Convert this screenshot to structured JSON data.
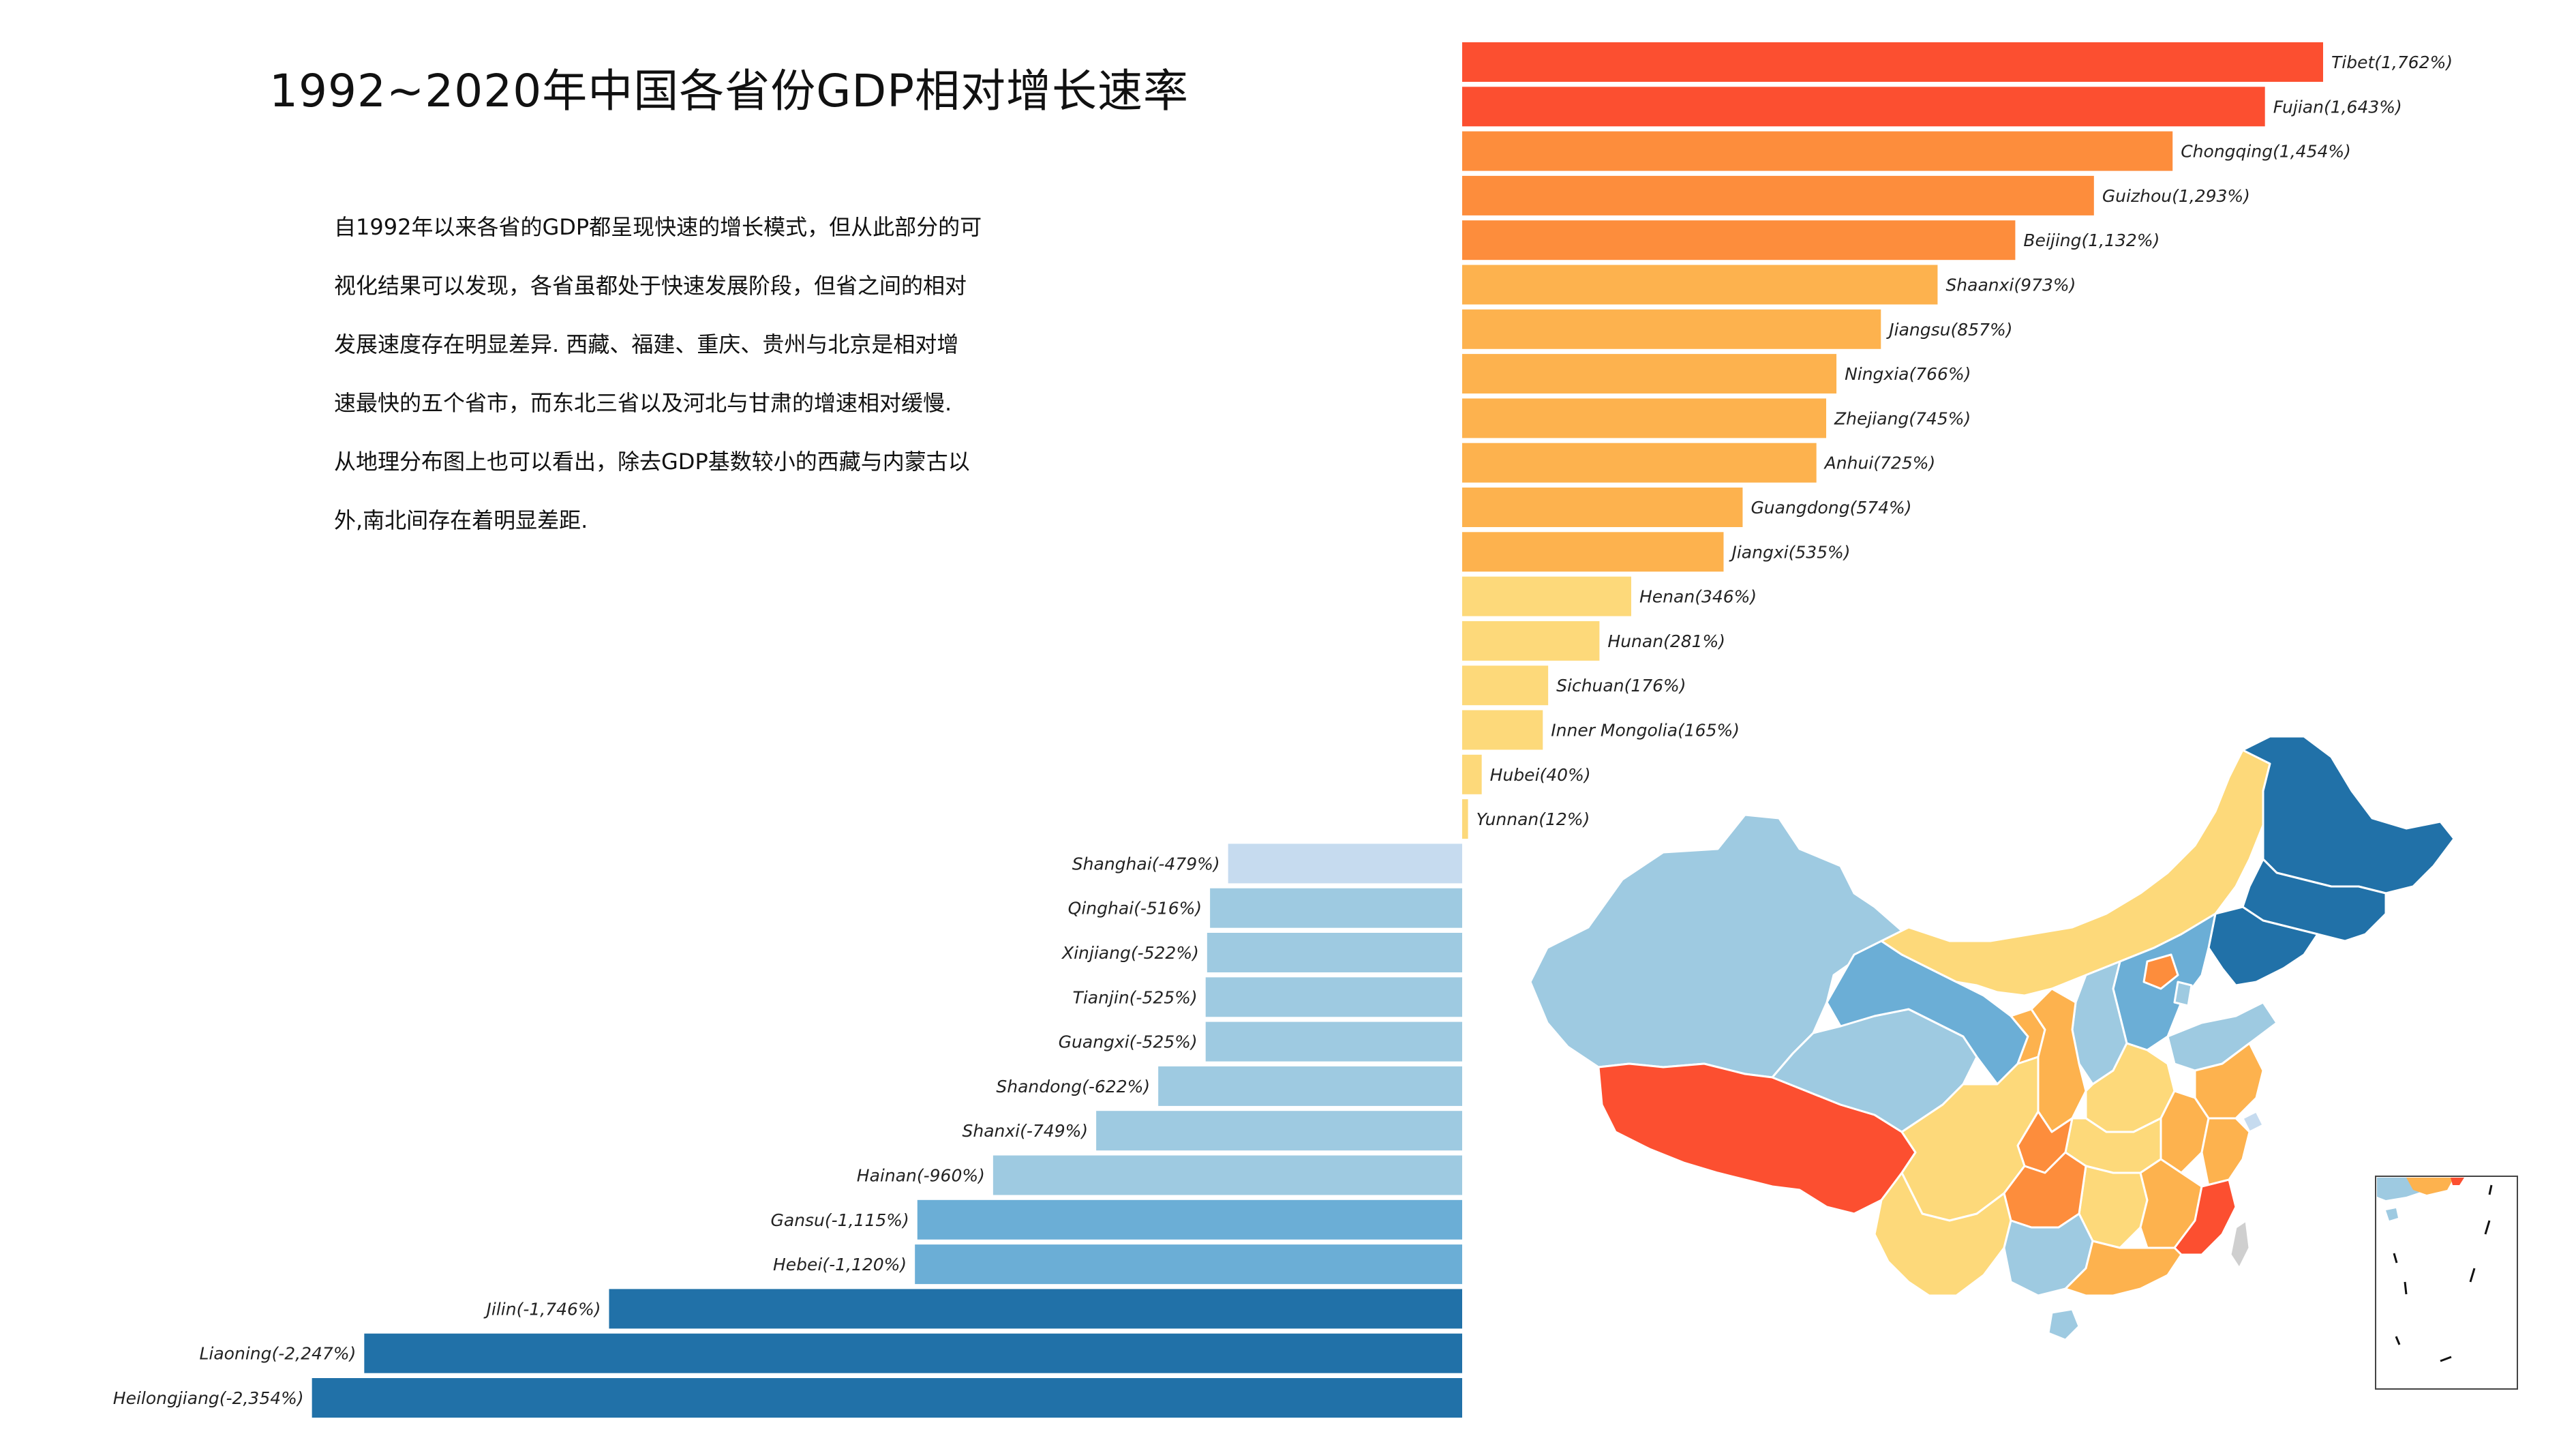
{
  "title": "1992~2020年中国各省份GDP相对增长速率",
  "description_lines": [
    "自1992年以来各省的GDP都呈现快速的增长模式，但从此部分的可",
    "视化结果可以发现，各省虽都处于快速发展阶段，但省之间的相对",
    "发展速度存在明显差异. 西藏、福建、重庆、贵州与北京是相对增",
    "速最快的五个省市，而东北三省以及河北与甘肃的增速相对缓慢.",
    "从地理分布图上也可以看出，除去GDP基数较小的西藏与内蒙古以",
    "外,南北间存在着明显差距."
  ],
  "colors": {
    "deep_red": "#fc4f30",
    "orange": "#fd8d3c",
    "light_orange": "#fdb24e",
    "yellow": "#fdd97a",
    "pale_blue": "#c6dbef",
    "light_blue": "#9ecae1",
    "mid_blue": "#6baed6",
    "dark_blue": "#2171a8",
    "taiwan_gray": "#cfcfcf"
  },
  "chart_data": {
    "type": "bar",
    "orientation": "horizontal",
    "unit": "%",
    "categories": [
      "Tibet",
      "Fujian",
      "Chongqing",
      "Guizhou",
      "Beijing",
      "Shaanxi",
      "Jiangsu",
      "Ningxia",
      "Zhejiang",
      "Anhui",
      "Guangdong",
      "Jiangxi",
      "Henan",
      "Hunan",
      "Sichuan",
      "Inner Mongolia",
      "Hubei",
      "Yunnan",
      "Shanghai",
      "Qinghai",
      "Xinjiang",
      "Tianjin",
      "Guangxi",
      "Shandong",
      "Shanxi",
      "Hainan",
      "Gansu",
      "Hebei",
      "Jilin",
      "Liaoning",
      "Heilongjiang"
    ],
    "values": [
      1762,
      1643,
      1454,
      1293,
      1132,
      973,
      857,
      766,
      745,
      725,
      574,
      535,
      346,
      281,
      176,
      165,
      40,
      12,
      -479,
      -516,
      -522,
      -525,
      -525,
      -622,
      -749,
      -960,
      -1115,
      -1120,
      -1746,
      -2247,
      -2354
    ],
    "labels": [
      "Tibet(1,762%)",
      "Fujian(1,643%)",
      "Chongqing(1,454%)",
      "Guizhou(1,293%)",
      "Beijing(1,132%)",
      "Shaanxi(973%)",
      "Jiangsu(857%)",
      "Ningxia(766%)",
      "Zhejiang(745%)",
      "Anhui(725%)",
      "Guangdong(574%)",
      "Jiangxi(535%)",
      "Henan(346%)",
      "Hunan(281%)",
      "Sichuan(176%)",
      "Inner Mongolia(165%)",
      "Hubei(40%)",
      "Yunnan(12%)",
      "Shanghai(-479%)",
      "Qinghai(-516%)",
      "Xinjiang(-522%)",
      "Tianjin(-525%)",
      "Guangxi(-525%)",
      "Shandong(-622%)",
      "Shanxi(-749%)",
      "Hainan(-960%)",
      "Gansu(-1,115%)",
      "Hebei(-1,120%)",
      "Jilin(-1,746%)",
      "Liaoning(-2,247%)",
      "Heilongjiang(-2,354%)"
    ],
    "color_groups": [
      "deep_red",
      "deep_red",
      "orange",
      "orange",
      "orange",
      "light_orange",
      "light_orange",
      "light_orange",
      "light_orange",
      "light_orange",
      "light_orange",
      "light_orange",
      "yellow",
      "yellow",
      "yellow",
      "yellow",
      "yellow",
      "yellow",
      "pale_blue",
      "light_blue",
      "light_blue",
      "light_blue",
      "light_blue",
      "light_blue",
      "light_blue",
      "light_blue",
      "mid_blue",
      "mid_blue",
      "dark_blue",
      "dark_blue",
      "dark_blue"
    ],
    "xlim": [
      -2354,
      1762
    ],
    "grid": false,
    "legend": "none"
  },
  "map": {
    "type": "choropleth",
    "region": "China provinces",
    "inset": "South China Sea islands"
  }
}
